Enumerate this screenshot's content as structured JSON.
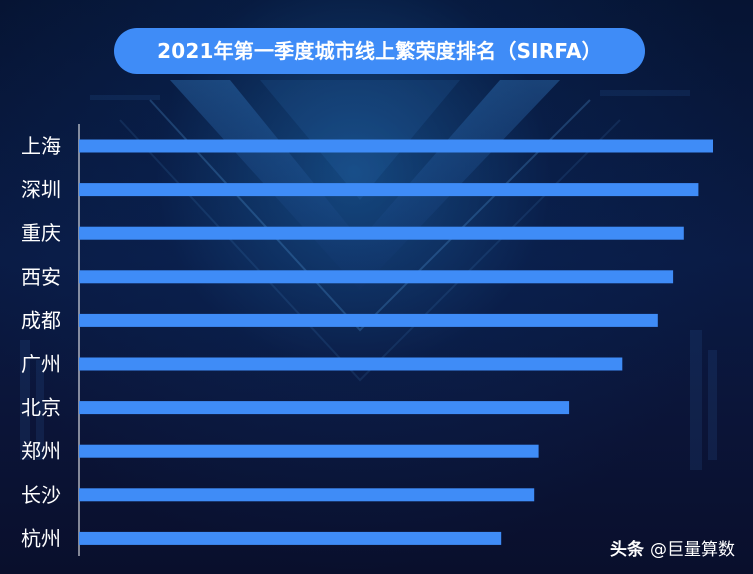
{
  "title": "2021年第一季度城市线上繁荣度排名（SIRFA）",
  "watermark": {
    "brand": "头条",
    "account": "@巨量算数"
  },
  "colors": {
    "bar": "#3f8cf7",
    "axis": "#ffffff",
    "label": "#ffffff"
  },
  "chart_data": {
    "type": "bar",
    "orientation": "horizontal",
    "title": "2021年第一季度城市线上繁荣度排名（SIRFA）",
    "categories": [
      "上海",
      "深圳",
      "重庆",
      "西安",
      "成都",
      "广州",
      "北京",
      "郑州",
      "长沙",
      "杭州"
    ],
    "values": [
      100,
      97.7,
      95.4,
      93.7,
      91.3,
      85.7,
      77.3,
      72.5,
      71.8,
      66.6
    ],
    "xlim": [
      0,
      100
    ],
    "grid": false,
    "legend": "none"
  }
}
